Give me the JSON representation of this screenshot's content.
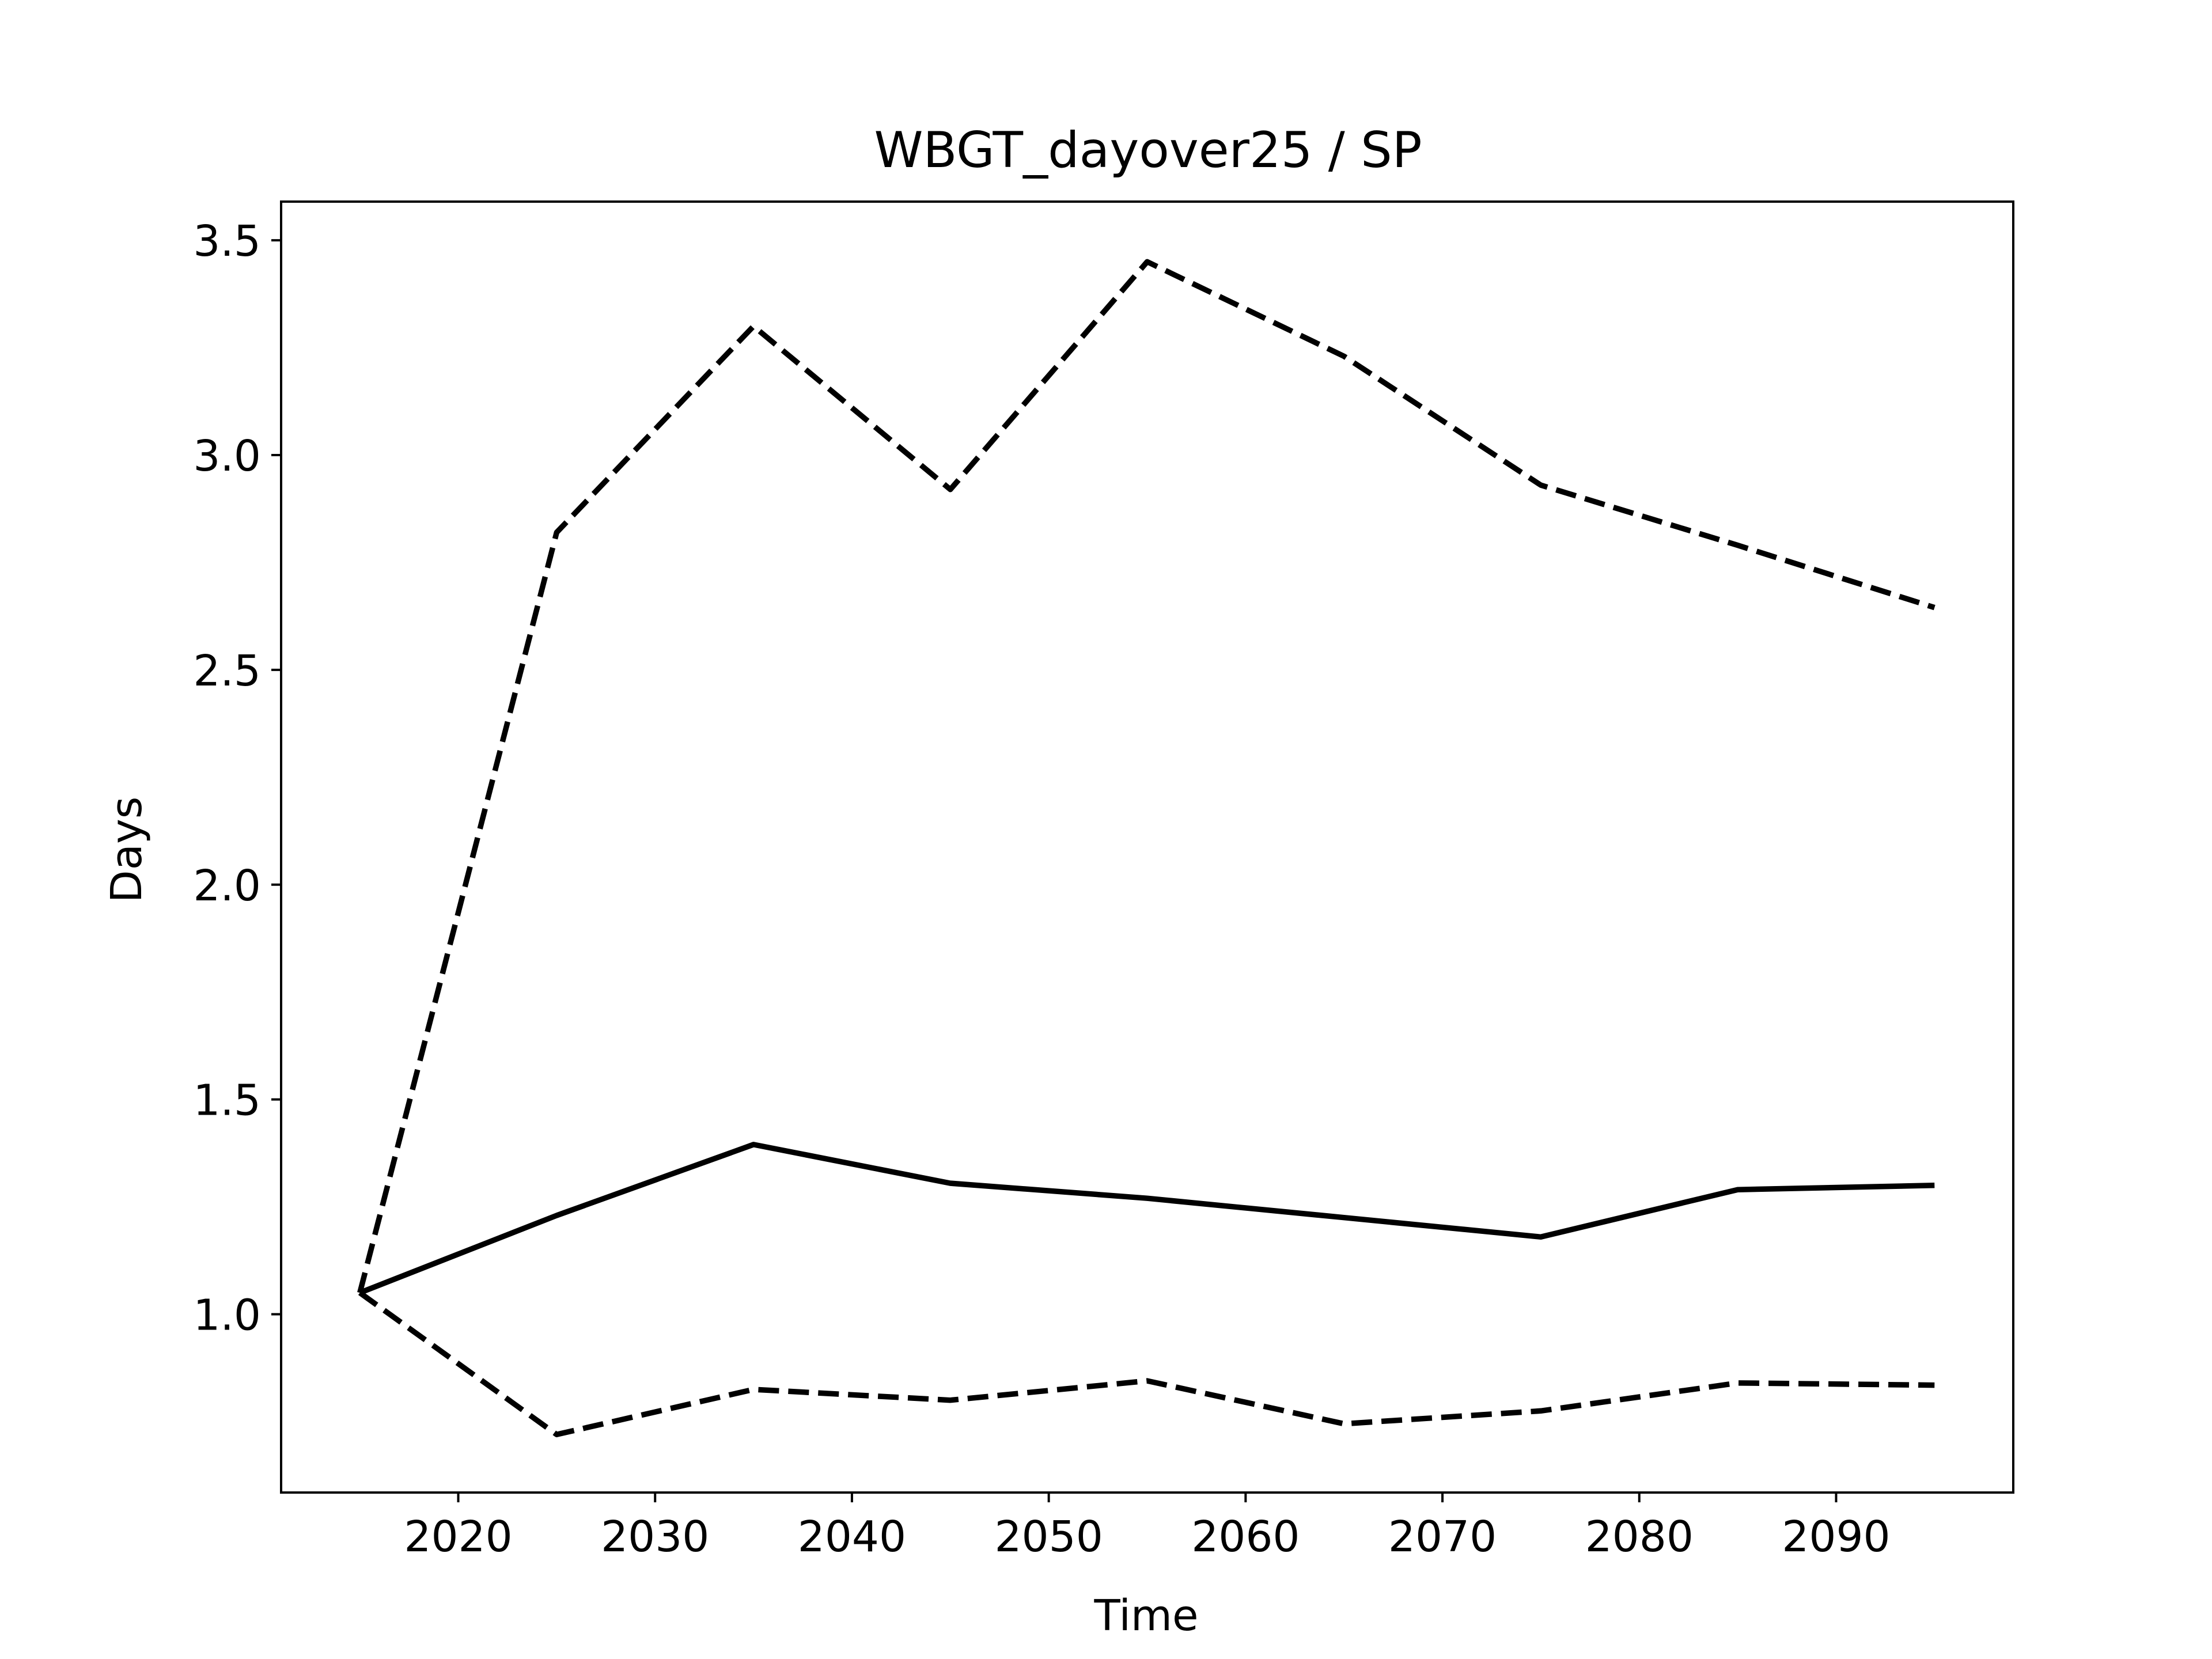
{
  "chart_data": {
    "type": "line",
    "title": "WBGT_dayover25 / SP",
    "xlabel": "Time",
    "ylabel": "Days",
    "xlim": [
      2011,
      2099
    ],
    "ylim": [
      0.585,
      3.59
    ],
    "xticks": [
      2020,
      2030,
      2040,
      2050,
      2060,
      2070,
      2080,
      2090
    ],
    "xtick_labels": [
      "2020",
      "2030",
      "2040",
      "2050",
      "2060",
      "2070",
      "2080",
      "2090"
    ],
    "yticks": [
      1.0,
      1.5,
      2.0,
      2.5,
      3.0,
      3.5
    ],
    "ytick_labels": [
      "1.0",
      "1.5",
      "2.0",
      "2.5",
      "3.0",
      "3.5"
    ],
    "grid": false,
    "legend": "none",
    "x": [
      2015,
      2025,
      2035,
      2045,
      2055,
      2065,
      2075,
      2085,
      2095
    ],
    "series": [
      {
        "style": "solid",
        "color": "#000000",
        "values": [
          1.05,
          1.23,
          1.395,
          1.305,
          1.27,
          1.225,
          1.18,
          1.29,
          1.3
        ]
      },
      {
        "style": "dashed",
        "color": "#000000",
        "values": [
          1.05,
          2.82,
          3.3,
          2.92,
          3.45,
          3.23,
          2.93,
          2.79,
          2.645
        ]
      },
      {
        "style": "dashed",
        "color": "#000000",
        "values": [
          1.05,
          0.72,
          0.825,
          0.8,
          0.845,
          0.745,
          0.775,
          0.84,
          0.835
        ]
      }
    ]
  }
}
